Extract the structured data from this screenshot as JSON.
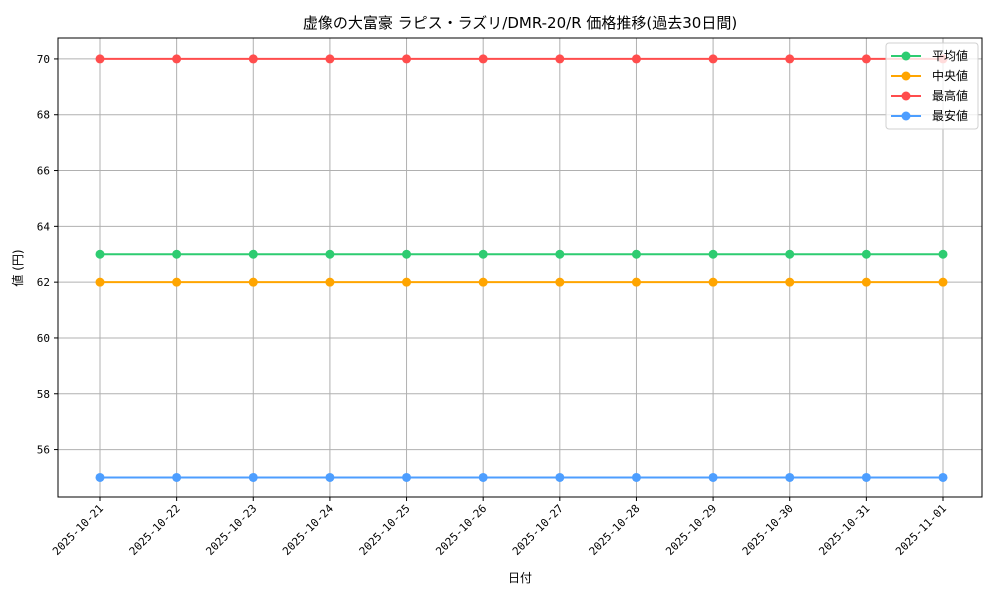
{
  "chart_data": {
    "type": "line",
    "title": "虚像の大富豪 ラピス・ラズリ/DMR-20/R 価格推移(過去30日間)",
    "xlabel": "日付",
    "ylabel": "値 (円)",
    "categories": [
      "2025-10-21",
      "2025-10-22",
      "2025-10-23",
      "2025-10-24",
      "2025-10-25",
      "2025-10-26",
      "2025-10-27",
      "2025-10-28",
      "2025-10-29",
      "2025-10-30",
      "2025-10-31",
      "2025-11-01"
    ],
    "series": [
      {
        "name": "平均値",
        "color": "#2ecc71",
        "values": [
          63,
          63,
          63,
          63,
          63,
          63,
          63,
          63,
          63,
          63,
          63,
          63
        ]
      },
      {
        "name": "中央値",
        "color": "#ffa500",
        "values": [
          62,
          62,
          62,
          62,
          62,
          62,
          62,
          62,
          62,
          62,
          62,
          62
        ]
      },
      {
        "name": "最高値",
        "color": "#ff4d4d",
        "values": [
          70,
          70,
          70,
          70,
          70,
          70,
          70,
          70,
          70,
          70,
          70,
          70
        ]
      },
      {
        "name": "最安値",
        "color": "#4d9eff",
        "values": [
          55,
          55,
          55,
          55,
          55,
          55,
          55,
          55,
          55,
          55,
          55,
          55
        ]
      }
    ],
    "yticks": [
      56,
      58,
      60,
      62,
      64,
      66,
      68,
      70
    ],
    "ylim": [
      54.3,
      70.75
    ],
    "grid": true,
    "legend_position": "upper right",
    "marker": "circle"
  }
}
